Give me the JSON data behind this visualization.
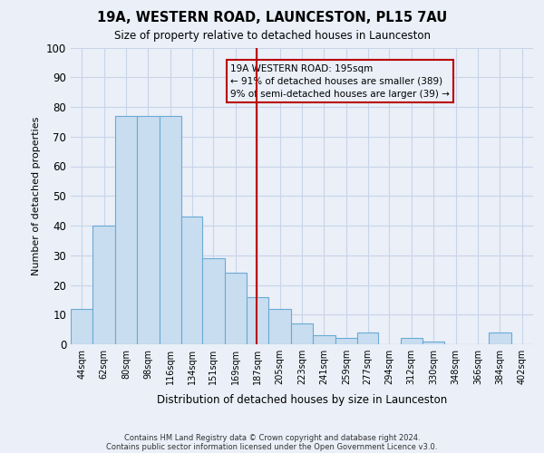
{
  "title": "19A, WESTERN ROAD, LAUNCESTON, PL15 7AU",
  "subtitle": "Size of property relative to detached houses in Launceston",
  "xlabel": "Distribution of detached houses by size in Launceston",
  "ylabel": "Number of detached properties",
  "bar_labels": [
    "44sqm",
    "62sqm",
    "80sqm",
    "98sqm",
    "116sqm",
    "134sqm",
    "151sqm",
    "169sqm",
    "187sqm",
    "205sqm",
    "223sqm",
    "241sqm",
    "259sqm",
    "277sqm",
    "294sqm",
    "312sqm",
    "330sqm",
    "348sqm",
    "366sqm",
    "384sqm",
    "402sqm"
  ],
  "bar_values": [
    12,
    40,
    77,
    77,
    77,
    43,
    29,
    24,
    16,
    12,
    7,
    3,
    2,
    4,
    0,
    2,
    1,
    0,
    0,
    4,
    0
  ],
  "bar_color": "#c9ddf0",
  "bar_edgecolor": "#6aaad4",
  "grid_color": "#c8d4e8",
  "background_color": "#eaeff8",
  "vline_x_index": 8.5,
  "vline_color": "#bb0000",
  "annotation_title": "19A WESTERN ROAD: 195sqm",
  "annotation_line1": "← 91% of detached houses are smaller (389)",
  "annotation_line2": "9% of semi-detached houses are larger (39) →",
  "annotation_box_edgecolor": "#bb0000",
  "ylim": [
    0,
    100
  ],
  "yticks": [
    0,
    10,
    20,
    30,
    40,
    50,
    60,
    70,
    80,
    90,
    100
  ],
  "bin_edges": [
    44,
    62,
    80,
    98,
    116,
    134,
    151,
    169,
    187,
    205,
    223,
    241,
    259,
    277,
    294,
    312,
    330,
    348,
    366,
    384,
    402,
    420
  ],
  "footnote1": "Contains HM Land Registry data © Crown copyright and database right 2024.",
  "footnote2": "Contains public sector information licensed under the Open Government Licence v3.0."
}
